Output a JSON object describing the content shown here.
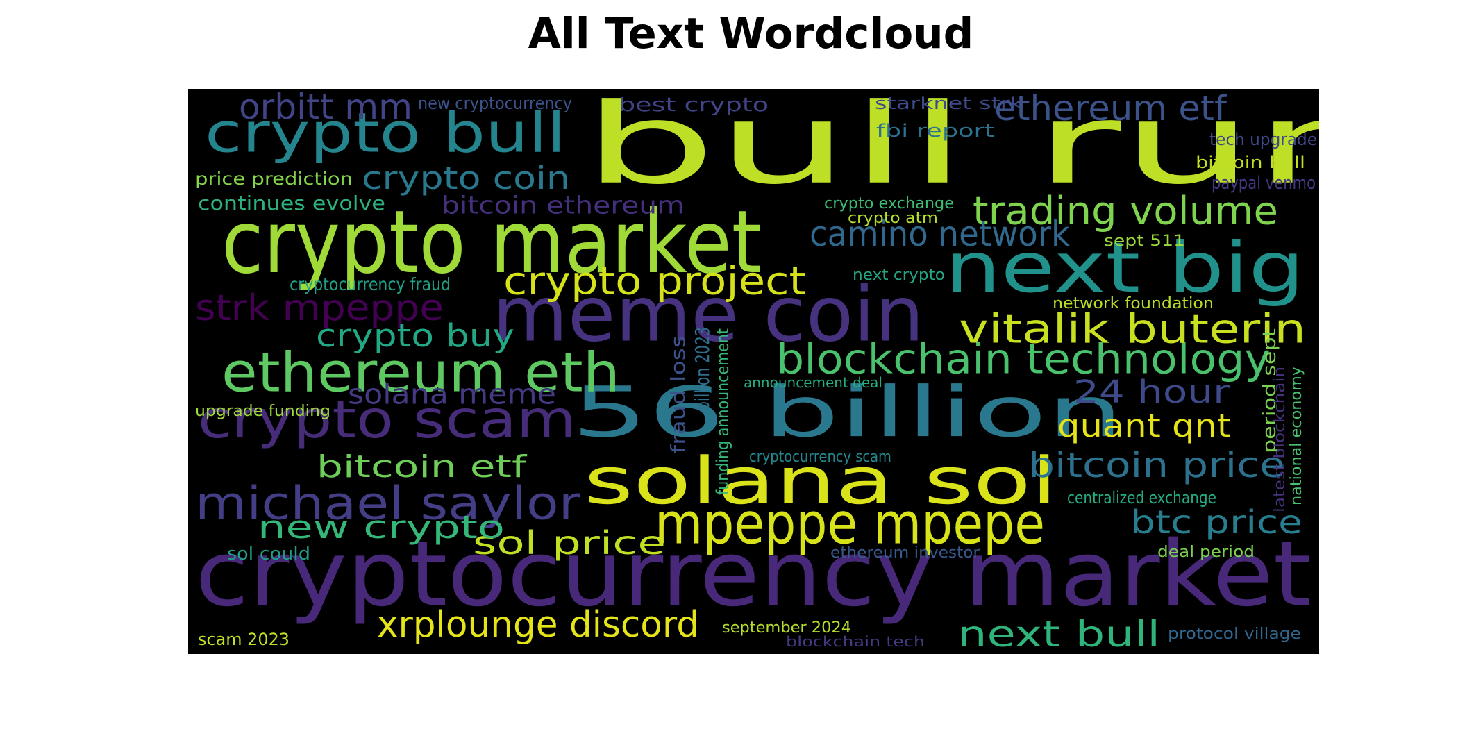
{
  "title": "All Text Wordcloud",
  "words": [
    {
      "text": "bull run",
      "color": "#bddf26"
    },
    {
      "text": "cryptocurrency market",
      "color": "#482878"
    },
    {
      "text": "crypto market",
      "color": "#a0da39"
    },
    {
      "text": "meme coin",
      "color": "#46327e"
    },
    {
      "text": "56 billion",
      "color": "#2a788e"
    },
    {
      "text": "next big",
      "color": "#21918c"
    },
    {
      "text": "solana sol",
      "color": "#dae319"
    },
    {
      "text": "mpeppe mpepe",
      "color": "#d8e219"
    },
    {
      "text": "crypto scam",
      "color": "#472c7a"
    },
    {
      "text": "ethereum eth",
      "color": "#5ec962"
    },
    {
      "text": "crypto bull",
      "color": "#25858e"
    },
    {
      "text": "michael saylor",
      "color": "#433e85"
    },
    {
      "text": "blockchain technology",
      "color": "#4ac16d"
    },
    {
      "text": "vitalik buterin",
      "color": "#c8e020"
    },
    {
      "text": "crypto project",
      "color": "#d5e21a"
    },
    {
      "text": "trading volume",
      "color": "#7fd34e"
    },
    {
      "text": "xrplounge discord",
      "color": "#e5e419"
    },
    {
      "text": "next bull",
      "color": "#2fb47c"
    },
    {
      "text": "strk mpeppe",
      "color": "#440154"
    },
    {
      "text": "ethereum etf",
      "color": "#3b528b"
    },
    {
      "text": "camino network",
      "color": "#31688e"
    },
    {
      "text": "orbitt mm",
      "color": "#414487"
    },
    {
      "text": "bitcoin price",
      "color": "#2c728e"
    },
    {
      "text": "sol price",
      "color": "#c2df23"
    },
    {
      "text": "btc price",
      "color": "#287d8e"
    },
    {
      "text": "new crypto",
      "color": "#35b779"
    },
    {
      "text": "crypto coin",
      "color": "#2a788e"
    },
    {
      "text": "bitcoin etf",
      "color": "#6ece58"
    },
    {
      "text": "quant qnt",
      "color": "#e5e419"
    },
    {
      "text": "24 hour",
      "color": "#3e4a89"
    },
    {
      "text": "crypto buy",
      "color": "#22a884"
    },
    {
      "text": "solana meme",
      "color": "#443a83"
    },
    {
      "text": "bitcoin ethereum",
      "color": "#46307e"
    },
    {
      "text": "continues evolve",
      "color": "#2db27d"
    },
    {
      "text": "price prediction",
      "color": "#86d549"
    },
    {
      "text": "new cryptocurrency",
      "color": "#3b528b"
    },
    {
      "text": "best crypto",
      "color": "#414487"
    },
    {
      "text": "starknet strk",
      "color": "#3e4a89"
    },
    {
      "text": "fbi report",
      "color": "#2c728e"
    },
    {
      "text": "tech upgrade",
      "color": "#3e4989"
    },
    {
      "text": "bitcoin bull",
      "color": "#c2df23"
    },
    {
      "text": "paypal venmo",
      "color": "#453781"
    },
    {
      "text": "crypto exchange",
      "color": "#3dbc74"
    },
    {
      "text": "crypto atm",
      "color": "#b5de2b"
    },
    {
      "text": "sept 511",
      "color": "#9bd93c"
    },
    {
      "text": "cryptocurrency fraud",
      "color": "#1fa187"
    },
    {
      "text": "next crypto",
      "color": "#22a785"
    },
    {
      "text": "network foundation",
      "color": "#b8de29"
    },
    {
      "text": "announcement deal",
      "color": "#27ad81"
    },
    {
      "text": "upgrade funding",
      "color": "#a0da39"
    },
    {
      "text": "cryptocurrency scam",
      "color": "#23888e"
    },
    {
      "text": "centralized exchange",
      "color": "#25ab82"
    },
    {
      "text": "sol could",
      "color": "#1f9e89"
    },
    {
      "text": "ethereum investor",
      "color": "#38598c"
    },
    {
      "text": "deal period",
      "color": "#7ad151"
    },
    {
      "text": "september 2024",
      "color": "#b5de2b"
    },
    {
      "text": "blockchain tech",
      "color": "#443983"
    },
    {
      "text": "scam 2023",
      "color": "#c0df25"
    },
    {
      "text": "protocol village",
      "color": "#31668e"
    },
    {
      "text": "fraud loss",
      "color": "#3b528b"
    },
    {
      "text": "billion 2023",
      "color": "#2e6f8e"
    },
    {
      "text": "funding announcement",
      "color": "#35b779"
    },
    {
      "text": "period sept",
      "color": "#7ad151"
    },
    {
      "text": "latest blockchain",
      "color": "#46327e"
    },
    {
      "text": "national economy",
      "color": "#48c16e"
    }
  ]
}
